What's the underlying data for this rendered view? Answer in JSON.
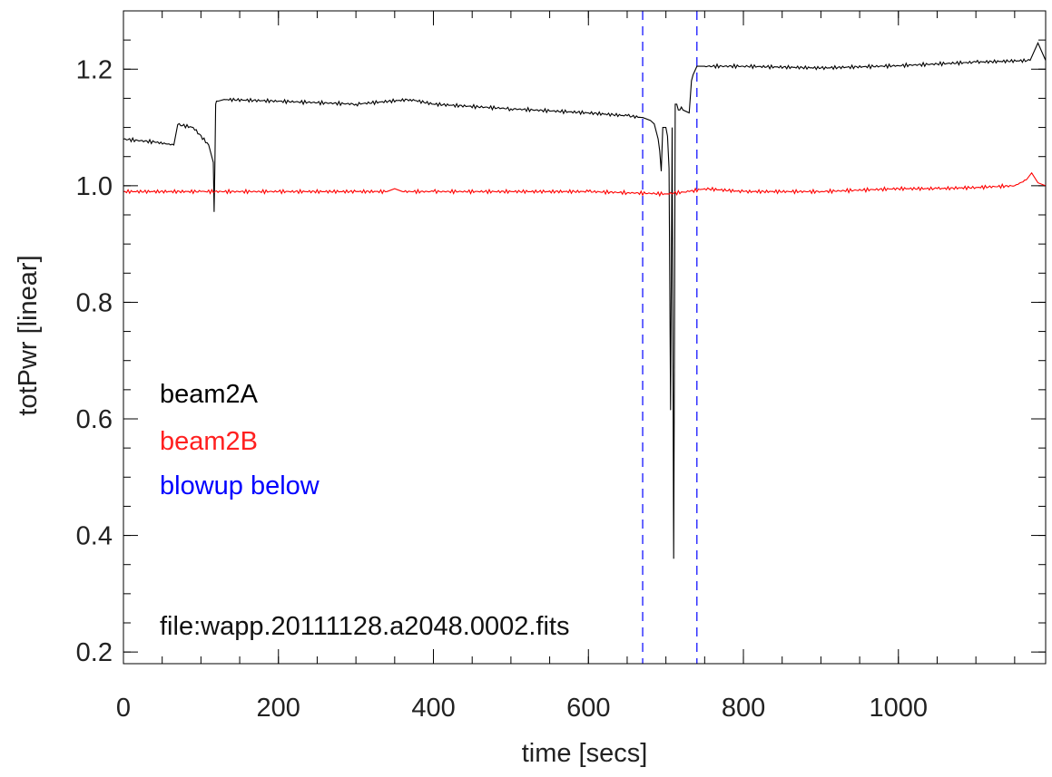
{
  "chart_data": {
    "type": "line",
    "xlabel": "time [secs]",
    "ylabel": "totPwr [linear]",
    "xlim": [
      0,
      1190
    ],
    "ylim": [
      0.18,
      1.3
    ],
    "x_ticks": [
      0,
      200,
      400,
      600,
      800,
      1000
    ],
    "y_ticks": [
      0.2,
      0.4,
      0.6,
      0.8,
      1.0,
      1.2
    ],
    "x_tick_labels": [
      "0",
      "200",
      "400",
      "600",
      "800",
      "1000"
    ],
    "y_tick_labels": [
      "0.2",
      "0.4",
      "0.6",
      "0.8",
      "1.0",
      "1.2"
    ],
    "x_minor_step": 50,
    "y_minor_step": 0.05,
    "grid": false,
    "legend_position": "left-middle",
    "series": [
      {
        "name": "beam2A",
        "color": "#000000",
        "x": [
          0,
          40,
          65,
          70,
          90,
          110,
          116,
          117,
          118,
          119,
          120,
          122,
          130,
          200,
          300,
          370,
          400,
          500,
          600,
          650,
          670,
          680,
          685,
          690,
          692,
          694,
          696,
          700,
          702,
          704,
          706,
          708,
          710,
          711,
          712,
          714,
          716,
          718,
          720,
          722,
          730,
          733,
          735,
          740,
          750,
          800,
          900,
          1000,
          1100,
          1170,
          1180,
          1190
        ],
        "y": [
          1.08,
          1.075,
          1.07,
          1.105,
          1.1,
          1.07,
          1.04,
          0.955,
          1.03,
          1.14,
          1.145,
          1.145,
          1.148,
          1.145,
          1.14,
          1.148,
          1.14,
          1.132,
          1.125,
          1.12,
          1.117,
          1.112,
          1.106,
          1.08,
          1.06,
          1.025,
          1.1,
          1.1,
          1.085,
          1.03,
          0.615,
          1.1,
          0.36,
          0.7,
          1.14,
          1.14,
          1.13,
          1.13,
          1.135,
          1.13,
          1.125,
          1.18,
          1.19,
          1.205,
          1.205,
          1.205,
          1.202,
          1.206,
          1.212,
          1.215,
          1.245,
          1.215
        ]
      },
      {
        "name": "beam2B",
        "color": "#ff0000",
        "x": [
          0,
          100,
          200,
          300,
          340,
          350,
          360,
          400,
          500,
          600,
          650,
          700,
          730,
          750,
          800,
          900,
          1000,
          1050,
          1100,
          1150,
          1165,
          1172,
          1180,
          1190
        ],
        "y": [
          0.99,
          0.99,
          0.99,
          0.99,
          0.99,
          0.995,
          0.99,
          0.99,
          0.99,
          0.99,
          0.988,
          0.986,
          0.99,
          0.995,
          0.99,
          0.99,
          0.995,
          0.995,
          0.997,
          1.0,
          1.01,
          1.022,
          1.005,
          1.0
        ]
      }
    ],
    "vlines": [
      {
        "x": 670,
        "color": "#0000ff",
        "style": "dashed"
      },
      {
        "x": 740,
        "color": "#0000ff",
        "style": "dashed"
      }
    ],
    "legend": [
      {
        "label": "beam2A",
        "color": "#000000"
      },
      {
        "label": "beam2B",
        "color": "#ff2020"
      },
      {
        "label": "blowup below",
        "color": "#0000ff"
      }
    ],
    "annotation": "file:wapp.20111128.a2048.0002.fits"
  }
}
